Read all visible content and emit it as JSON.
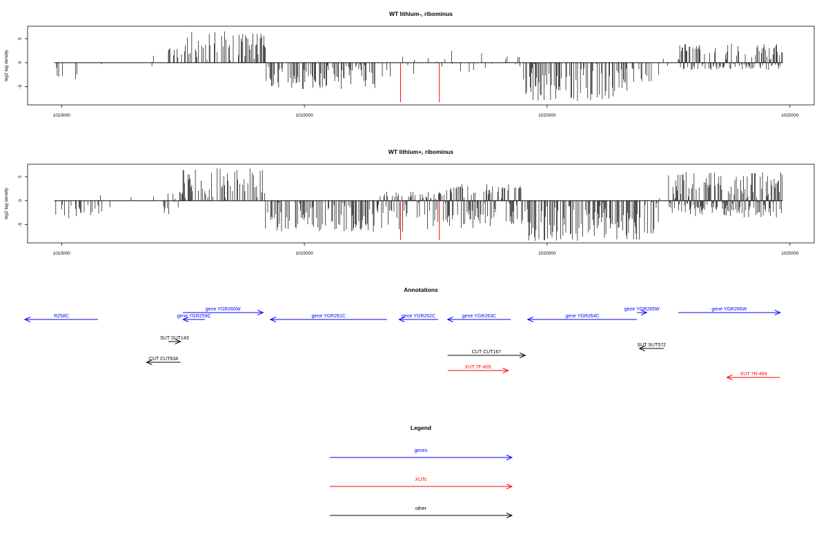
{
  "colors": {
    "gene": "#0000ff",
    "xut": "#ff0000",
    "other": "#000000",
    "marker": "#ff0000",
    "axis": "#000000"
  },
  "chart_data": [
    {
      "type": "bar",
      "title": "WT lithium-, ribominus",
      "xlabel": "",
      "ylabel": "log2 tag density",
      "xlim": [
        1009300,
        1025500
      ],
      "ylim": [
        -8.8,
        7.6
      ],
      "x_ticks": [
        1010000,
        1015000,
        1020000,
        1025000
      ],
      "x_tick_labels": [
        "1010000",
        "1015000",
        "1020000",
        "1025000"
      ],
      "y_ticks": [
        -5,
        0,
        5
      ],
      "y_tick_labels": [
        "-5",
        "0",
        "5"
      ],
      "signal_range": [
        1009850,
        1024850
      ],
      "bar_step": 15,
      "markers": [
        1016980,
        1017780
      ],
      "segments": [
        {
          "start": 1009850,
          "end": 1010450,
          "min": -3.5,
          "max": 0,
          "density": 0.3
        },
        {
          "start": 1010450,
          "end": 1012200,
          "min": -2.5,
          "max": 1.5,
          "density": 0.04
        },
        {
          "start": 1012200,
          "end": 1012500,
          "min": 0,
          "max": 3.5,
          "density": 0.5
        },
        {
          "start": 1012500,
          "end": 1014200,
          "min": 0,
          "max": 6.5,
          "density": 1.0
        },
        {
          "start": 1014200,
          "end": 1016500,
          "min": -5.5,
          "max": 0,
          "density": 0.9
        },
        {
          "start": 1016500,
          "end": 1017900,
          "min": -3.5,
          "max": 1.5,
          "density": 0.15
        },
        {
          "start": 1017900,
          "end": 1019200,
          "min": -2.5,
          "max": 2.5,
          "density": 0.1
        },
        {
          "start": 1019200,
          "end": 1019500,
          "min": -1.5,
          "max": 2.0,
          "density": 0.3
        },
        {
          "start": 1019500,
          "end": 1021800,
          "min": -8.0,
          "max": 0,
          "density": 1.0
        },
        {
          "start": 1021800,
          "end": 1022300,
          "min": -4.0,
          "max": 0,
          "density": 0.4
        },
        {
          "start": 1022300,
          "end": 1022700,
          "min": -1.0,
          "max": 1.0,
          "density": 0.03
        },
        {
          "start": 1022700,
          "end": 1024850,
          "min": -1.5,
          "max": 4.0,
          "density": 0.7
        }
      ]
    },
    {
      "type": "bar",
      "title": "WT lithium+, ribominus",
      "xlabel": "",
      "ylabel": "log2 tag density",
      "xlim": [
        1009300,
        1025500
      ],
      "ylim": [
        -8.8,
        7.6
      ],
      "x_ticks": [
        1010000,
        1015000,
        1020000,
        1025000
      ],
      "x_tick_labels": [
        "1010000",
        "1015000",
        "1020000",
        "1025000"
      ],
      "y_ticks": [
        -5,
        0,
        5
      ],
      "y_tick_labels": [
        "-5",
        "0",
        "5"
      ],
      "signal_range": [
        1009850,
        1024850
      ],
      "bar_step": 15,
      "markers": [
        1016980,
        1017780
      ],
      "segments": [
        {
          "start": 1009850,
          "end": 1010800,
          "min": -4.0,
          "max": 0,
          "density": 0.6
        },
        {
          "start": 1010800,
          "end": 1012100,
          "min": -2.5,
          "max": 1.5,
          "density": 0.06
        },
        {
          "start": 1012100,
          "end": 1012500,
          "min": -3.0,
          "max": 2.0,
          "density": 0.5
        },
        {
          "start": 1012500,
          "end": 1014200,
          "min": 0,
          "max": 6.8,
          "density": 1.0
        },
        {
          "start": 1014200,
          "end": 1016500,
          "min": -6.5,
          "max": 0,
          "density": 1.0
        },
        {
          "start": 1016500,
          "end": 1017900,
          "min": -6.5,
          "max": 2.0,
          "density": 0.7
        },
        {
          "start": 1017900,
          "end": 1019500,
          "min": -6.0,
          "max": 3.5,
          "density": 0.8
        },
        {
          "start": 1019500,
          "end": 1022300,
          "min": -8.5,
          "max": 0,
          "density": 1.0
        },
        {
          "start": 1022300,
          "end": 1022500,
          "min": -1.0,
          "max": 1.0,
          "density": 0.05
        },
        {
          "start": 1022500,
          "end": 1024850,
          "min": -3.5,
          "max": 6.0,
          "density": 1.0
        }
      ]
    }
  ],
  "annotations": {
    "title": "Annotations",
    "features": [
      {
        "label": "R258C",
        "type": "gene",
        "start": 1009200,
        "end": 1010750,
        "strand": "-",
        "row": 1
      },
      {
        "label": "gene YGR260W",
        "type": "gene",
        "start": 1012500,
        "end": 1014150,
        "strand": "+",
        "row": 0
      },
      {
        "label": "gene YGR259C",
        "type": "gene",
        "start": 1012500,
        "end": 1012950,
        "strand": "-",
        "row": 1
      },
      {
        "label": "gene YGR261C",
        "type": "gene",
        "start": 1014300,
        "end": 1016700,
        "strand": "-",
        "row": 1
      },
      {
        "label": "gene YGR262C",
        "type": "gene",
        "start": 1016950,
        "end": 1017750,
        "strand": "-",
        "row": 1
      },
      {
        "label": "gene YGR263C",
        "type": "gene",
        "start": 1017950,
        "end": 1019250,
        "strand": "-",
        "row": 1
      },
      {
        "label": "gene YGR264C",
        "type": "gene",
        "start": 1019600,
        "end": 1021850,
        "strand": "-",
        "row": 1
      },
      {
        "label": "gene YGR265W",
        "type": "gene",
        "start": 1021850,
        "end": 1022050,
        "strand": "+",
        "row": 0
      },
      {
        "label": "gene YGR266W",
        "type": "gene",
        "start": 1022700,
        "end": 1024800,
        "strand": "+",
        "row": 0
      },
      {
        "label": "SUT SUT143",
        "type": "other",
        "start": 1012200,
        "end": 1012450,
        "strand": "+",
        "row": 3
      },
      {
        "label": "SUT SUT572",
        "type": "other",
        "start": 1021900,
        "end": 1022400,
        "strand": "-",
        "row": 4
      },
      {
        "label": "CUT CUT634",
        "type": "other",
        "start": 1011750,
        "end": 1012450,
        "strand": "-",
        "row": 6
      },
      {
        "label": "CUT CUT167",
        "type": "other",
        "start": 1017950,
        "end": 1019550,
        "strand": "+",
        "row": 5
      },
      {
        "label": "XUT 7F-455",
        "type": "xut",
        "start": 1017950,
        "end": 1019200,
        "strand": "+",
        "row": 7
      },
      {
        "label": "XUT 7R-469",
        "type": "xut",
        "start": 1023700,
        "end": 1024800,
        "strand": "-",
        "row": 8
      }
    ]
  },
  "legend": {
    "title": "Legend",
    "items": [
      {
        "label": "genes",
        "type": "gene"
      },
      {
        "label": "XUTs",
        "type": "xut"
      },
      {
        "label": "other",
        "type": "other"
      }
    ]
  }
}
